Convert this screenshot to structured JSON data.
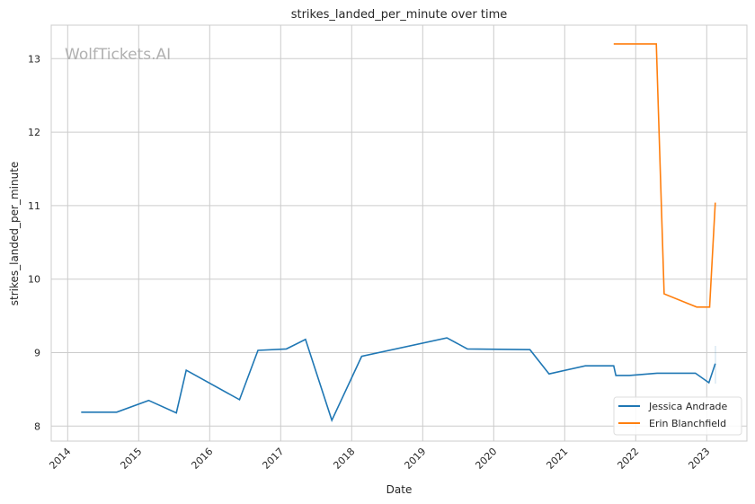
{
  "chart_data": {
    "type": "line",
    "title": "strikes_landed_per_minute over time",
    "xlabel": "Date",
    "ylabel": "strikes_landed_per_minute",
    "xlim": [
      2013.8,
      2023.6
    ],
    "ylim": [
      7.8,
      13.45
    ],
    "x_ticks": [
      "2014",
      "2015",
      "2016",
      "2017",
      "2018",
      "2019",
      "2020",
      "2021",
      "2022",
      "2023"
    ],
    "y_ticks": [
      "8",
      "9",
      "10",
      "11",
      "12",
      "13"
    ],
    "grid": true,
    "legend_position": "bottom-right",
    "watermark": "WolfTickets.AI",
    "series": [
      {
        "name": "Jessica Andrade",
        "color": "#1f77b4",
        "x": [
          2014.19,
          2014.69,
          2015.14,
          2015.53,
          2015.67,
          2016.42,
          2016.68,
          2017.08,
          2017.35,
          2017.72,
          2018.14,
          2019.34,
          2019.63,
          2020.51,
          2020.78,
          2021.29,
          2021.69,
          2021.72,
          2021.91,
          2022.3,
          2022.84,
          2023.03,
          2023.12
        ],
        "y": [
          8.19,
          8.19,
          8.35,
          8.18,
          8.76,
          8.36,
          9.03,
          9.05,
          9.18,
          8.08,
          8.95,
          9.2,
          9.05,
          9.04,
          8.71,
          8.82,
          8.82,
          8.69,
          8.69,
          8.72,
          8.72,
          8.59,
          8.85
        ]
      },
      {
        "name": "Erin Blanchfield",
        "color": "#ff7f0e",
        "x": [
          2021.69,
          2022.29,
          2022.4,
          2022.86,
          2023.04,
          2023.12
        ],
        "y": [
          13.2,
          13.2,
          9.8,
          9.62,
          9.62,
          11.04
        ]
      }
    ]
  }
}
